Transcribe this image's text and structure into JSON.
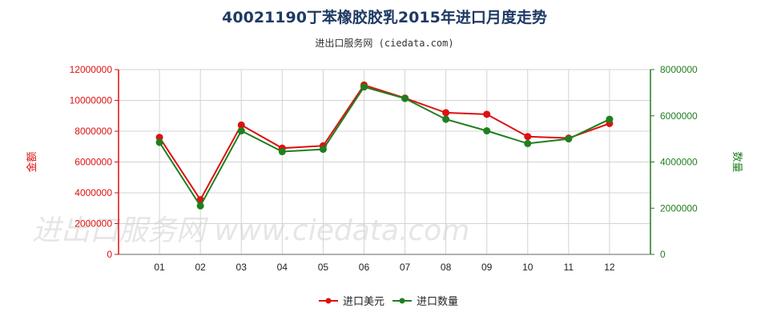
{
  "chart_data": {
    "type": "line",
    "title": "40021190丁苯橡胶胶乳2015年进口月度走势",
    "subtitle": "进出口服务网 (ciedata.com)",
    "watermark": "进出口服务网 www.ciedata.com",
    "categories": [
      "01",
      "02",
      "03",
      "04",
      "05",
      "06",
      "07",
      "08",
      "09",
      "10",
      "11",
      "12"
    ],
    "y_left": {
      "label": "金额",
      "range": [
        0,
        12000000
      ],
      "ticks": [
        "0",
        "2000000",
        "4000000",
        "6000000",
        "8000000",
        "10000000",
        "12000000"
      ],
      "color": "#dd1111"
    },
    "y_right": {
      "label": "数量",
      "range": [
        0,
        8000000
      ],
      "ticks": [
        "0",
        "2000000",
        "4000000",
        "6000000",
        "8000000"
      ],
      "color": "#1f7f1f"
    },
    "grid": true,
    "legend_position": "bottom-center",
    "series": [
      {
        "name": "进口美元",
        "axis": "left",
        "color": "#dd1111",
        "values": [
          7600000,
          3550000,
          8400000,
          6900000,
          7050000,
          11000000,
          10150000,
          9200000,
          9100000,
          7650000,
          7550000,
          8500000
        ]
      },
      {
        "name": "进口数量",
        "axis": "right",
        "color": "#1f7f1f",
        "values": [
          4850000,
          2100000,
          5350000,
          4450000,
          4550000,
          7250000,
          6750000,
          5850000,
          5350000,
          4800000,
          5000000,
          5850000
        ]
      }
    ]
  }
}
